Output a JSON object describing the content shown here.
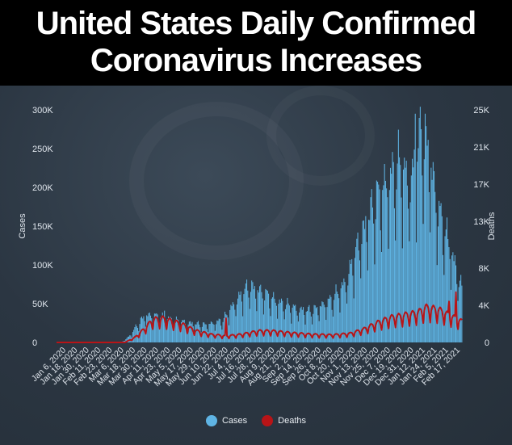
{
  "title_lines": [
    "United States Daily Confirmed",
    "Coronavirus Increases"
  ],
  "colors": {
    "cases": "#5fb4e4",
    "deaths": "#b81417",
    "tick_text": "#dfe5ec"
  },
  "chart_data": {
    "type": "bar+line",
    "ylabel": "Cases",
    "y2label": "Deaths",
    "ylim": [
      0,
      300000
    ],
    "y2lim": [
      0,
      25000
    ],
    "y_ticks": [
      0,
      50000,
      100000,
      150000,
      200000,
      250000,
      300000
    ],
    "y_tick_labels": [
      "0",
      "50K",
      "100K",
      "150K",
      "200K",
      "250K",
      "300K"
    ],
    "y2_ticks": [
      0,
      4000,
      8000,
      13000,
      17000,
      21000,
      25000
    ],
    "y2_tick_labels": [
      "0",
      "4K",
      "8K",
      "13K",
      "17K",
      "21K",
      "25K"
    ],
    "x_tick_labels": [
      "Jan 6, 2020",
      "Jan 18, 2020",
      "Jan 30, 2020",
      "Feb 11, 2020",
      "Feb 23, 2020",
      "Mar 6, 2020",
      "Mar 18, 2020",
      "Mar 30, 2020",
      "Apr 11, 2020",
      "Apr 23, 2020",
      "May 5, 2020",
      "May 17, 2020",
      "May 29, 2020",
      "Jun 10, 2020",
      "Jun 22, 2020",
      "Jul 4, 2020",
      "Jul 16, 2020",
      "Jul 28, 2020",
      "Aug 9, 2020",
      "Aug 21, 2020",
      "Sep 2, 2020",
      "Sep 14, 2020",
      "Sep 26, 2020",
      "Oct 8, 2020",
      "Oct 20, 2020",
      "Nov 1, 2020",
      "Nov 13, 2020",
      "Nov 25, 2020",
      "Dec 7, 2020",
      "Dec 19, 2020",
      "Dec 31, 2020",
      "Jan 12, 2021",
      "Jan 24, 2021",
      "Feb 5, 2021",
      "Feb 17, 2021"
    ],
    "x_start_date": "2020-01-06",
    "x_end_date": "2021-02-18",
    "cases_anchors": [
      [
        "2020-01-06",
        0
      ],
      [
        "2020-03-01",
        0
      ],
      [
        "2020-03-12",
        500
      ],
      [
        "2020-03-20",
        8000
      ],
      [
        "2020-03-28",
        22000
      ],
      [
        "2020-04-04",
        32000
      ],
      [
        "2020-04-10",
        33000
      ],
      [
        "2020-04-24",
        30000
      ],
      [
        "2020-05-15",
        24000
      ],
      [
        "2020-06-05",
        21000
      ],
      [
        "2020-06-22",
        27000
      ],
      [
        "2020-07-05",
        50000
      ],
      [
        "2020-07-18",
        68000
      ],
      [
        "2020-07-30",
        62000
      ],
      [
        "2020-08-15",
        50000
      ],
      [
        "2020-09-05",
        40000
      ],
      [
        "2020-09-20",
        38000
      ],
      [
        "2020-10-10",
        52000
      ],
      [
        "2020-10-25",
        75000
      ],
      [
        "2020-11-06",
        120000
      ],
      [
        "2020-11-20",
        165000
      ],
      [
        "2020-12-05",
        195000
      ],
      [
        "2020-12-18",
        215000
      ],
      [
        "2020-12-28",
        190000
      ],
      [
        "2021-01-08",
        250000
      ],
      [
        "2021-01-15",
        235000
      ],
      [
        "2021-01-25",
        160000
      ],
      [
        "2021-02-05",
        120000
      ],
      [
        "2021-02-12",
        90000
      ],
      [
        "2021-02-18",
        65000
      ]
    ],
    "cases_spikes": [
      [
        "2020-04-24",
        41000
      ],
      [
        "2021-01-02",
        295000
      ],
      [
        "2021-01-08",
        275000
      ]
    ],
    "deaths_anchors": [
      [
        "2020-01-06",
        0
      ],
      [
        "2020-03-15",
        0
      ],
      [
        "2020-03-25",
        500
      ],
      [
        "2020-04-05",
        1500
      ],
      [
        "2020-04-12",
        2300
      ],
      [
        "2020-04-22",
        2400
      ],
      [
        "2020-05-10",
        1900
      ],
      [
        "2020-05-25",
        1200
      ],
      [
        "2020-06-10",
        800
      ],
      [
        "2020-06-25",
        650
      ],
      [
        "2020-07-10",
        800
      ],
      [
        "2020-07-28",
        1150
      ],
      [
        "2020-08-10",
        1150
      ],
      [
        "2020-08-30",
        950
      ],
      [
        "2020-09-20",
        800
      ],
      [
        "2020-10-10",
        750
      ],
      [
        "2020-10-28",
        900
      ],
      [
        "2020-11-10",
        1300
      ],
      [
        "2020-11-25",
        2000
      ],
      [
        "2020-12-08",
        2500
      ],
      [
        "2020-12-20",
        2700
      ],
      [
        "2021-01-05",
        3000
      ],
      [
        "2021-01-12",
        3500
      ],
      [
        "2021-01-25",
        3300
      ],
      [
        "2021-02-10",
        2500
      ],
      [
        "2021-02-18",
        2100
      ]
    ],
    "deaths_spikes": [
      [
        "2020-06-25",
        2600
      ],
      [
        "2021-02-12",
        5400
      ],
      [
        "2021-02-05",
        4400
      ]
    ],
    "legend": [
      {
        "label": "Cases",
        "series": "cases"
      },
      {
        "label": "Deaths",
        "series": "deaths"
      }
    ]
  }
}
